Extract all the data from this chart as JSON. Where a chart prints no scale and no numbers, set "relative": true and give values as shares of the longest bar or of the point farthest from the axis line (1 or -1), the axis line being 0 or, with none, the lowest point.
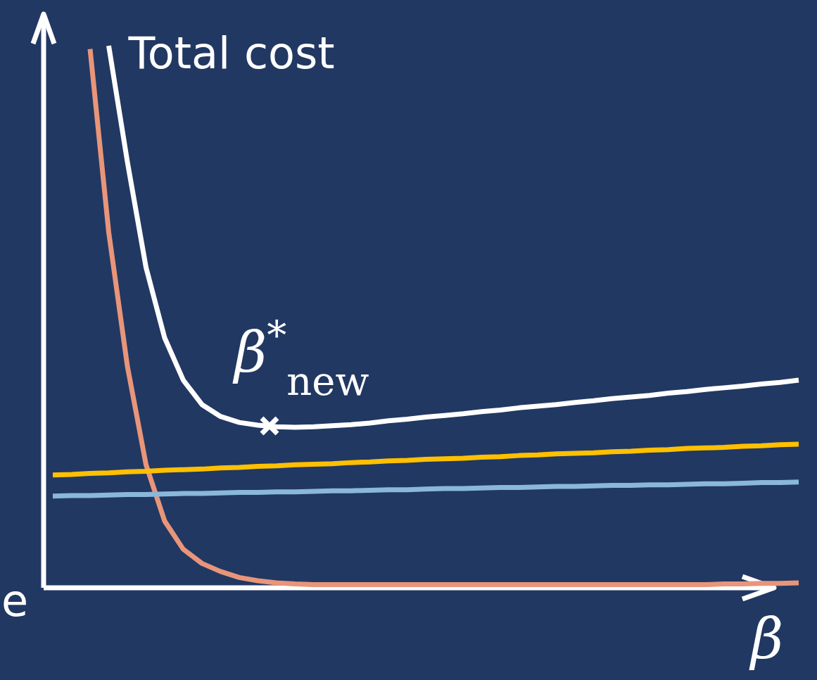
{
  "chart_data": {
    "type": "line",
    "relative": true,
    "xlabel": "β",
    "categories": [
      null,
      null,
      null,
      null,
      null,
      null,
      null,
      null,
      null,
      null,
      null,
      null,
      null,
      null,
      null,
      null,
      null,
      null,
      null,
      null,
      null,
      null,
      null,
      null,
      null,
      null,
      null,
      null,
      null,
      null,
      null,
      null,
      null,
      null,
      null,
      null,
      null,
      null,
      null,
      null,
      null
    ],
    "series": [
      {
        "color": "#e8957a",
        "values": [
          null,
          null,
          0.994,
          0.656,
          0.409,
          0.227,
          0.123,
          0.071,
          0.045,
          0.03,
          0.019,
          0.013,
          0.009,
          0.007,
          0.006,
          0.006,
          0.006,
          0.006,
          0.006,
          0.006,
          0.006,
          0.006,
          0.006,
          0.006,
          0.006,
          0.006,
          0.006,
          0.006,
          0.006,
          0.006,
          0.006,
          0.006,
          0.006,
          0.006,
          0.006,
          0.006,
          0.007,
          0.007,
          0.008,
          0.008,
          0.009
        ]
      },
      {
        "name": "Total cost",
        "color": "#ffffff",
        "values": [
          null,
          null,
          null,
          1.0,
          0.786,
          0.591,
          0.461,
          0.383,
          0.338,
          0.316,
          0.305,
          0.3,
          0.297,
          0.296,
          0.297,
          0.299,
          0.301,
          0.304,
          0.308,
          0.311,
          0.315,
          0.318,
          0.321,
          0.325,
          0.328,
          0.332,
          0.335,
          0.338,
          0.342,
          0.345,
          0.349,
          0.352,
          0.355,
          0.359,
          0.362,
          0.366,
          0.369,
          0.372,
          0.376,
          0.379,
          0.383
        ]
      },
      {
        "color": "#ffc000",
        "values": [
          0.208,
          0.209,
          0.211,
          0.212,
          0.214,
          0.215,
          0.217,
          0.218,
          0.219,
          0.221,
          0.222,
          0.224,
          0.225,
          0.227,
          0.228,
          0.229,
          0.231,
          0.232,
          0.234,
          0.235,
          0.237,
          0.238,
          0.239,
          0.241,
          0.242,
          0.244,
          0.245,
          0.247,
          0.248,
          0.249,
          0.251,
          0.252,
          0.254,
          0.255,
          0.257,
          0.258,
          0.259,
          0.261,
          0.262,
          0.264,
          0.265
        ]
      },
      {
        "color": "#8ab8d8",
        "values": [
          0.169,
          0.17,
          0.17,
          0.171,
          0.172,
          0.172,
          0.173,
          0.174,
          0.174,
          0.175,
          0.176,
          0.176,
          0.177,
          0.177,
          0.178,
          0.179,
          0.179,
          0.18,
          0.181,
          0.181,
          0.182,
          0.183,
          0.183,
          0.184,
          0.185,
          0.185,
          0.186,
          0.187,
          0.187,
          0.188,
          0.189,
          0.189,
          0.19,
          0.19,
          0.191,
          0.192,
          0.192,
          0.193,
          0.194,
          0.194,
          0.195
        ]
      }
    ],
    "annotations": [
      "β$^{*}$$_{new}$",
      "e"
    ]
  }
}
